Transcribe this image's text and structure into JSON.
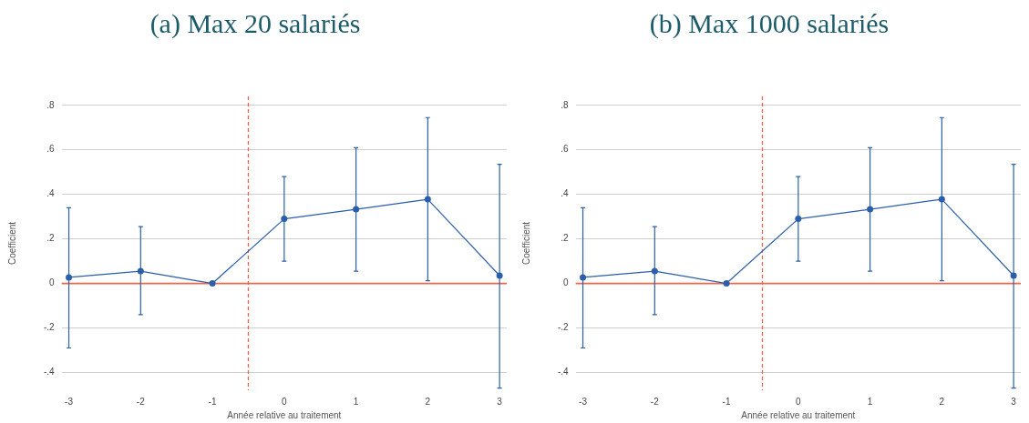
{
  "chart_data": [
    {
      "type": "line",
      "title": "(a) Max 20 salariés",
      "xlabel": "Année relative au traitement",
      "ylabel": "Coefficient",
      "x": [
        -3,
        -2,
        -1,
        0,
        1,
        2,
        3
      ],
      "series": [
        {
          "color": "#2b5fab",
          "values": [
            0.027,
            0.055,
            0,
            0.29,
            0.333,
            0.378,
            0.035
          ],
          "errors": [
            [
              -0.29,
              0.34
            ],
            [
              -0.14,
              0.255
            ],
            null,
            [
              0.1,
              0.48
            ],
            [
              0.055,
              0.61
            ],
            [
              0.012,
              0.745
            ],
            [
              -0.47,
              0.535
            ]
          ]
        }
      ],
      "xlim": [
        -3.1,
        3.1
      ],
      "xticks": [
        -3,
        -2,
        -1,
        0,
        1,
        2,
        3
      ],
      "ylim": [
        -0.48,
        0.84
      ],
      "yticks": [
        {
          "value": -0.4,
          "label": "-.4"
        },
        {
          "value": -0.2,
          "label": "-.2"
        },
        0,
        {
          "value": 0.2,
          "label": ".2"
        },
        {
          "value": 0.4,
          "label": ".4"
        },
        {
          "value": 0.6,
          "label": ".6"
        },
        {
          "value": 0.8,
          "label": ".8"
        }
      ],
      "ref_lines": [
        {
          "axis": "y",
          "value": 0,
          "color": "#f0654a",
          "line_style": "solid"
        },
        {
          "axis": "x",
          "value": -0.5,
          "color": "#f0654a",
          "line_style": "dashed"
        }
      ],
      "grid": "y",
      "legend": false,
      "marker": "circle"
    },
    {
      "type": "line",
      "title": "(b) Max 1000 salariés",
      "xlabel": "Année relative au traitement",
      "ylabel": "Coefficient",
      "x": [
        -3,
        -2,
        -1,
        0,
        1,
        2,
        3
      ],
      "series": [
        {
          "color": "#2b5fab",
          "values": [
            0.027,
            0.055,
            0,
            0.29,
            0.333,
            0.378,
            0.035
          ],
          "errors": [
            [
              -0.29,
              0.34
            ],
            [
              -0.14,
              0.255
            ],
            null,
            [
              0.1,
              0.48
            ],
            [
              0.055,
              0.61
            ],
            [
              0.012,
              0.745
            ],
            [
              -0.47,
              0.535
            ]
          ]
        }
      ],
      "xlim": [
        -3.1,
        3.1
      ],
      "xticks": [
        -3,
        -2,
        -1,
        0,
        1,
        2,
        3
      ],
      "ylim": [
        -0.48,
        0.84
      ],
      "yticks": [
        {
          "value": -0.4,
          "label": "-.4"
        },
        {
          "value": -0.2,
          "label": "-.2"
        },
        0,
        {
          "value": 0.2,
          "label": ".2"
        },
        {
          "value": 0.4,
          "label": ".4"
        },
        {
          "value": 0.6,
          "label": ".6"
        },
        {
          "value": 0.8,
          "label": ".8"
        }
      ],
      "ref_lines": [
        {
          "axis": "y",
          "value": 0,
          "color": "#f0654a",
          "line_style": "solid"
        },
        {
          "axis": "x",
          "value": -0.5,
          "color": "#f0654a",
          "line_style": "dashed"
        }
      ],
      "grid": "y",
      "legend": false,
      "marker": "circle"
    }
  ]
}
